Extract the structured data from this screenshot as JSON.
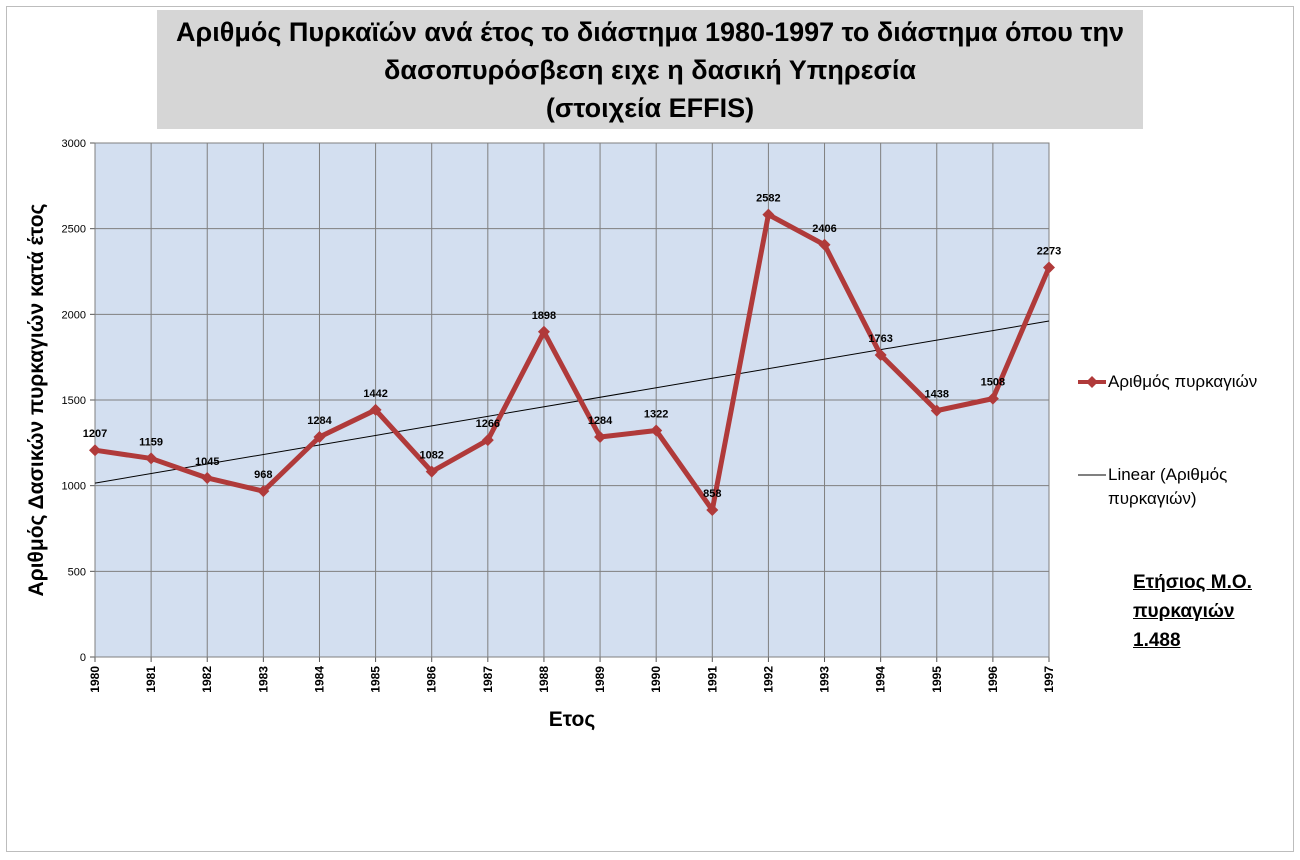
{
  "title_lines": [
    "Αριθμός Πυρκαϊών ανά έτος το διάστημα 1980-1997 το διάστημα όπου την",
    "δασοπυρόσβεση ειχε η δασική Υπηρεσία",
    "(στοιχεία  EFFIS)"
  ],
  "colors": {
    "title_bg": "#d6d6d6",
    "plot_bg": "#d3dff0",
    "grid": "#7f7f7f",
    "series": "#b03a3a",
    "trend": "#000000"
  },
  "legend": {
    "series_label": "Αριθμός πυρκαγιών",
    "trend_label_lines": [
      "Linear (Αριθμός",
      "πυρκαγιών)"
    ]
  },
  "note_lines": [
    "Ετήσιος Μ.Ο.",
    "πυρκαγιών",
    "1.488"
  ],
  "chart_data": {
    "type": "line",
    "xlabel": "Ετος",
    "ylabel": "Αριθμός Δασικών πυρκαγιών κατά έτος",
    "categories": [
      "1980",
      "1981",
      "1982",
      "1983",
      "1984",
      "1985",
      "1986",
      "1987",
      "1988",
      "1989",
      "1990",
      "1991",
      "1992",
      "1993",
      "1994",
      "1995",
      "1996",
      "1997"
    ],
    "series": [
      {
        "name": "Αριθμός πυρκαγιών",
        "values": [
          1207,
          1159,
          1045,
          968,
          1284,
          1442,
          1082,
          1266,
          1898,
          1284,
          1322,
          858,
          2582,
          2406,
          1763,
          1438,
          1508,
          2273
        ],
        "marker": "diamond",
        "data_labels": true
      }
    ],
    "trendline": {
      "name": "Linear (Αριθμός πυρκαγιών)",
      "type": "linear",
      "start": 1015,
      "end": 1961
    },
    "ylim": [
      0,
      3000
    ],
    "yticks": [
      0,
      500,
      1000,
      1500,
      2000,
      2500,
      3000
    ],
    "grid": true,
    "legend_position": "right"
  }
}
